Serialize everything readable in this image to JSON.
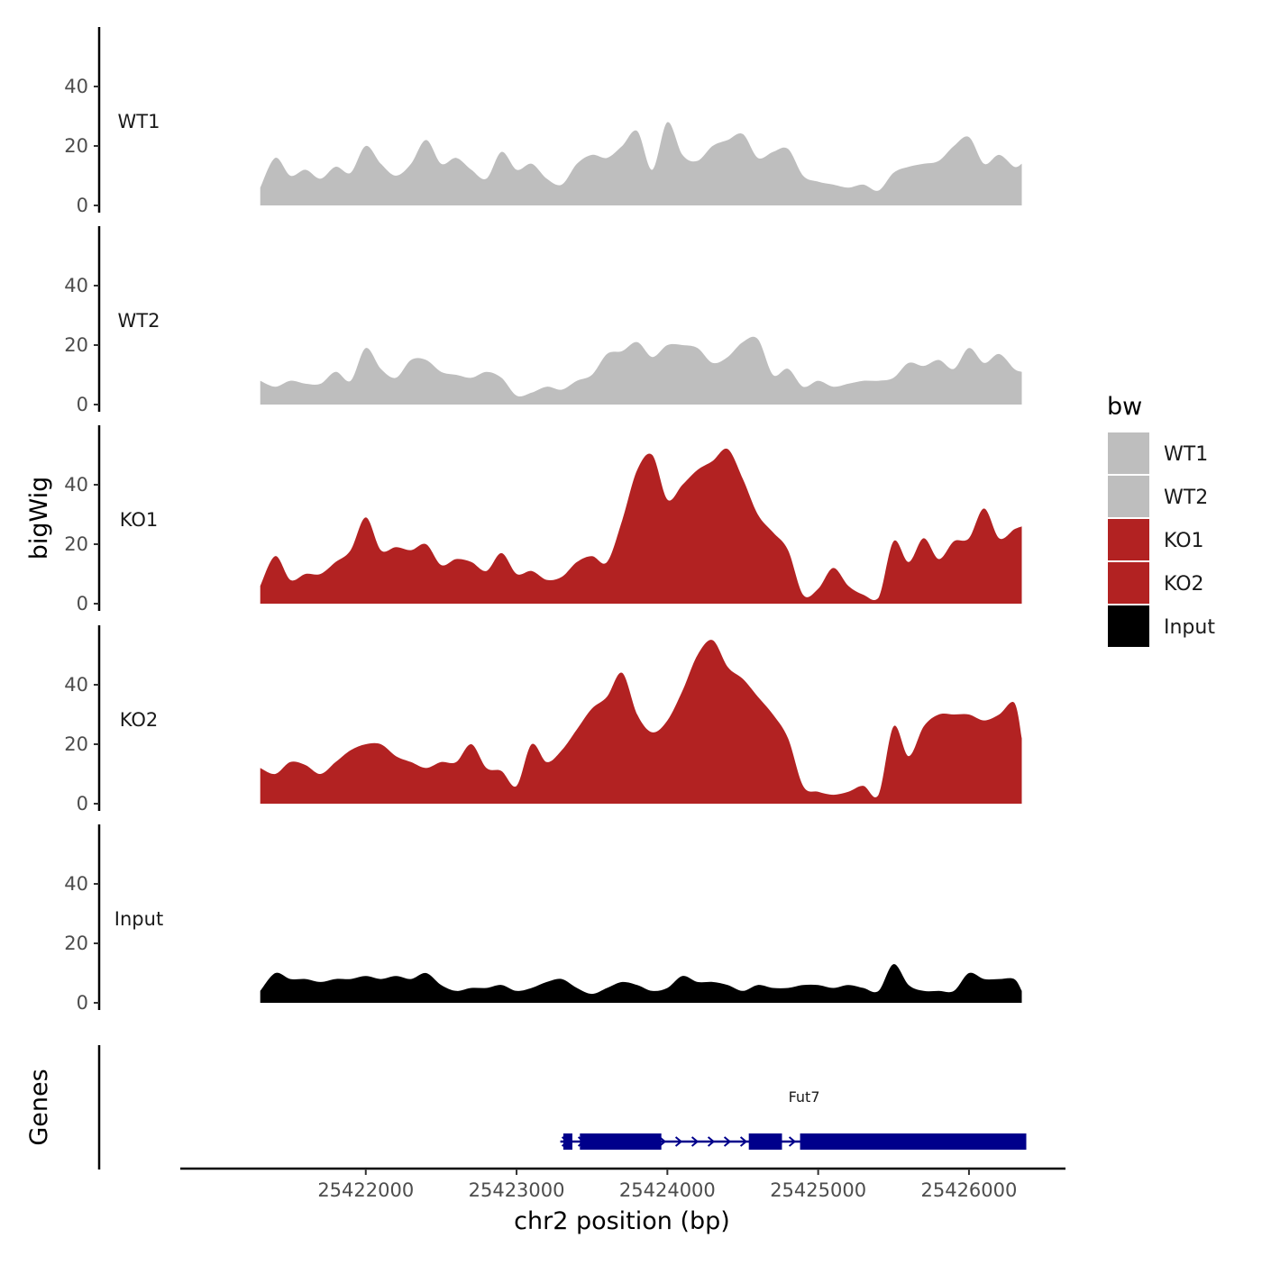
{
  "chart_data": {
    "type": "area",
    "ylabel": "bigWig",
    "xlabel": "chr2 position (bp)",
    "x_range": [
      25420770,
      25426640
    ],
    "x_ticks": [
      25422000,
      25423000,
      25424000,
      25425000,
      25426000
    ],
    "y_range": [
      0,
      58
    ],
    "y_ticks": [
      0,
      20,
      40
    ],
    "grid": false,
    "legend": {
      "title": "bw",
      "position": "right",
      "entries": [
        {
          "label": "WT1",
          "color": "#bebebe"
        },
        {
          "label": "WT2",
          "color": "#bebebe"
        },
        {
          "label": "KO1",
          "color": "#b22222"
        },
        {
          "label": "KO2",
          "color": "#b22222"
        },
        {
          "label": "Input",
          "color": "#000000"
        }
      ]
    },
    "x": [
      25421300,
      25421400,
      25421500,
      25421600,
      25421700,
      25421800,
      25421900,
      25422000,
      25422100,
      25422200,
      25422300,
      25422400,
      25422500,
      25422600,
      25422700,
      25422800,
      25422900,
      25423000,
      25423100,
      25423200,
      25423300,
      25423400,
      25423500,
      25423600,
      25423700,
      25423800,
      25423900,
      25424000,
      25424100,
      25424200,
      25424300,
      25424400,
      25424500,
      25424600,
      25424700,
      25424800,
      25424900,
      25425000,
      25425100,
      25425200,
      25425300,
      25425400,
      25425500,
      25425600,
      25425700,
      25425800,
      25425900,
      25426000,
      25426100,
      25426200,
      25426300,
      25426350
    ],
    "series": [
      {
        "name": "WT1",
        "color": "#bebebe",
        "values": [
          6,
          16,
          10,
          12,
          9,
          13,
          11,
          20,
          14,
          10,
          14,
          22,
          14,
          16,
          12,
          9,
          18,
          12,
          14,
          9,
          7,
          14,
          17,
          16,
          20,
          25,
          12,
          28,
          17,
          15,
          20,
          22,
          24,
          16,
          18,
          19,
          10,
          8,
          7,
          6,
          7,
          5,
          11,
          13,
          14,
          15,
          20,
          23,
          14,
          17,
          13,
          14
        ]
      },
      {
        "name": "WT2",
        "color": "#bebebe",
        "values": [
          8,
          6,
          8,
          7,
          7,
          11,
          8,
          19,
          12,
          9,
          15,
          15,
          11,
          10,
          9,
          11,
          9,
          3,
          4,
          6,
          5,
          8,
          10,
          17,
          18,
          21,
          16,
          20,
          20,
          19,
          14,
          16,
          21,
          22,
          10,
          12,
          6,
          8,
          6,
          7,
          8,
          8,
          9,
          14,
          13,
          15,
          12,
          19,
          14,
          17,
          12,
          11
        ]
      },
      {
        "name": "KO1",
        "color": "#b22222",
        "values": [
          6,
          16,
          8,
          10,
          10,
          14,
          18,
          29,
          18,
          19,
          18,
          20,
          13,
          15,
          14,
          11,
          17,
          10,
          11,
          8,
          9,
          14,
          16,
          14,
          28,
          45,
          50,
          35,
          40,
          45,
          48,
          52,
          42,
          30,
          24,
          18,
          3,
          5,
          12,
          6,
          3,
          2,
          21,
          14,
          22,
          15,
          21,
          22,
          32,
          22,
          25,
          26
        ]
      },
      {
        "name": "KO2",
        "color": "#b22222",
        "values": [
          12,
          10,
          14,
          13,
          10,
          14,
          18,
          20,
          20,
          16,
          14,
          12,
          14,
          14,
          20,
          12,
          11,
          6,
          20,
          14,
          18,
          25,
          32,
          36,
          44,
          30,
          24,
          28,
          38,
          50,
          55,
          46,
          42,
          36,
          30,
          22,
          6,
          4,
          3,
          4,
          6,
          3,
          26,
          16,
          26,
          30,
          30,
          30,
          28,
          30,
          34,
          22
        ]
      },
      {
        "name": "Input",
        "color": "#000000",
        "values": [
          4,
          10,
          8,
          8,
          7,
          8,
          8,
          9,
          8,
          9,
          8,
          10,
          6,
          4,
          5,
          5,
          6,
          4,
          5,
          7,
          8,
          5,
          3,
          5,
          7,
          6,
          4,
          5,
          9,
          7,
          7,
          6,
          4,
          6,
          5,
          5,
          6,
          6,
          5,
          6,
          5,
          4,
          13,
          6,
          4,
          4,
          4,
          10,
          8,
          8,
          8,
          4
        ]
      }
    ],
    "track_labels": [
      "WT1",
      "WT2",
      "KO1",
      "KO2",
      "Input"
    ],
    "genes_track": {
      "label": "Genes",
      "genes": [
        {
          "name": "Fut7",
          "color": "#00008b",
          "start": 25423290,
          "end": 25426380,
          "exons": [
            [
              25423310,
              25423370
            ],
            [
              25423420,
              25423960
            ],
            [
              25424540,
              25424760
            ],
            [
              25424880,
              25426380
            ]
          ]
        }
      ]
    }
  }
}
